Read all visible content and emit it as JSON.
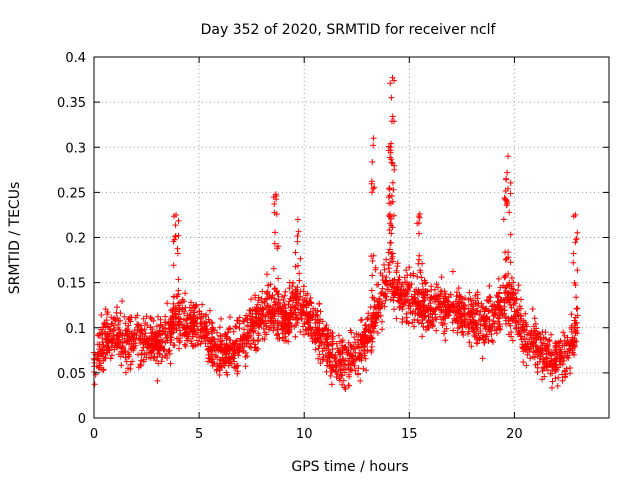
{
  "chart_data": {
    "type": "scatter",
    "title": "Day 352 of 2020, SRMTID for receiver nclf",
    "xlabel": "GPS time / hours",
    "ylabel": "SRMTID / TECUs",
    "xlim": [
      0,
      24.5
    ],
    "ylim": [
      0,
      0.4
    ],
    "x_ticks": [
      "0",
      "5",
      "10",
      "15",
      "20"
    ],
    "y_ticks": [
      "0",
      "0.05",
      "0.1",
      "0.15",
      "0.2",
      "0.25",
      "0.3",
      "0.35",
      "0.4"
    ],
    "grid": true,
    "marker": "+",
    "color": "#ff0000",
    "trend": {
      "hours": [
        0,
        0.5,
        1,
        1.5,
        2,
        2.5,
        3,
        3.5,
        4,
        4.5,
        5,
        5.5,
        6,
        6.5,
        7,
        7.5,
        8,
        8.5,
        9,
        9.5,
        10,
        10.5,
        11,
        11.5,
        12,
        12.5,
        13,
        13.5,
        14,
        14.5,
        15,
        15.5,
        16,
        16.5,
        17,
        17.5,
        18,
        18.5,
        19,
        19.5,
        20,
        20.5,
        21,
        21.5,
        22,
        22.5,
        23
      ],
      "values": [
        0.065,
        0.085,
        0.095,
        0.085,
        0.09,
        0.085,
        0.08,
        0.095,
        0.11,
        0.1,
        0.105,
        0.085,
        0.075,
        0.075,
        0.08,
        0.1,
        0.115,
        0.12,
        0.11,
        0.12,
        0.125,
        0.1,
        0.08,
        0.065,
        0.06,
        0.07,
        0.09,
        0.12,
        0.16,
        0.14,
        0.135,
        0.125,
        0.12,
        0.125,
        0.12,
        0.115,
        0.11,
        0.105,
        0.11,
        0.13,
        0.12,
        0.09,
        0.08,
        0.07,
        0.065,
        0.07,
        0.1
      ]
    },
    "peaks": [
      {
        "x": 3.9,
        "y": 0.225
      },
      {
        "x": 8.65,
        "y": 0.248
      },
      {
        "x": 9.7,
        "y": 0.22
      },
      {
        "x": 13.3,
        "y": 0.31
      },
      {
        "x": 14.2,
        "y": 0.377
      },
      {
        "x": 14.15,
        "y": 0.355
      },
      {
        "x": 14.1,
        "y": 0.3
      },
      {
        "x": 15.5,
        "y": 0.226
      },
      {
        "x": 19.7,
        "y": 0.29
      },
      {
        "x": 19.6,
        "y": 0.265
      },
      {
        "x": 22.9,
        "y": 0.225
      }
    ],
    "point_count": 2600
  }
}
